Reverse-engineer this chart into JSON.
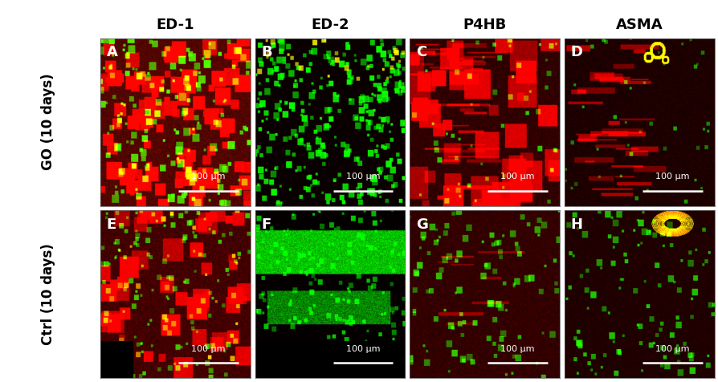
{
  "col_headers": [
    "ED-1",
    "ED-2",
    "P4HB",
    "ASMA"
  ],
  "row_labels": [
    "GO (10 days)",
    "Ctrl (10 days)"
  ],
  "panel_labels": [
    [
      "A",
      "B",
      "C",
      "D"
    ],
    [
      "E",
      "F",
      "G",
      "H"
    ]
  ],
  "scalebar_text": "100 µm",
  "header_fontsize": 13,
  "label_fontsize": 12,
  "panel_label_fontsize": 13,
  "scalebar_fontsize": 8
}
